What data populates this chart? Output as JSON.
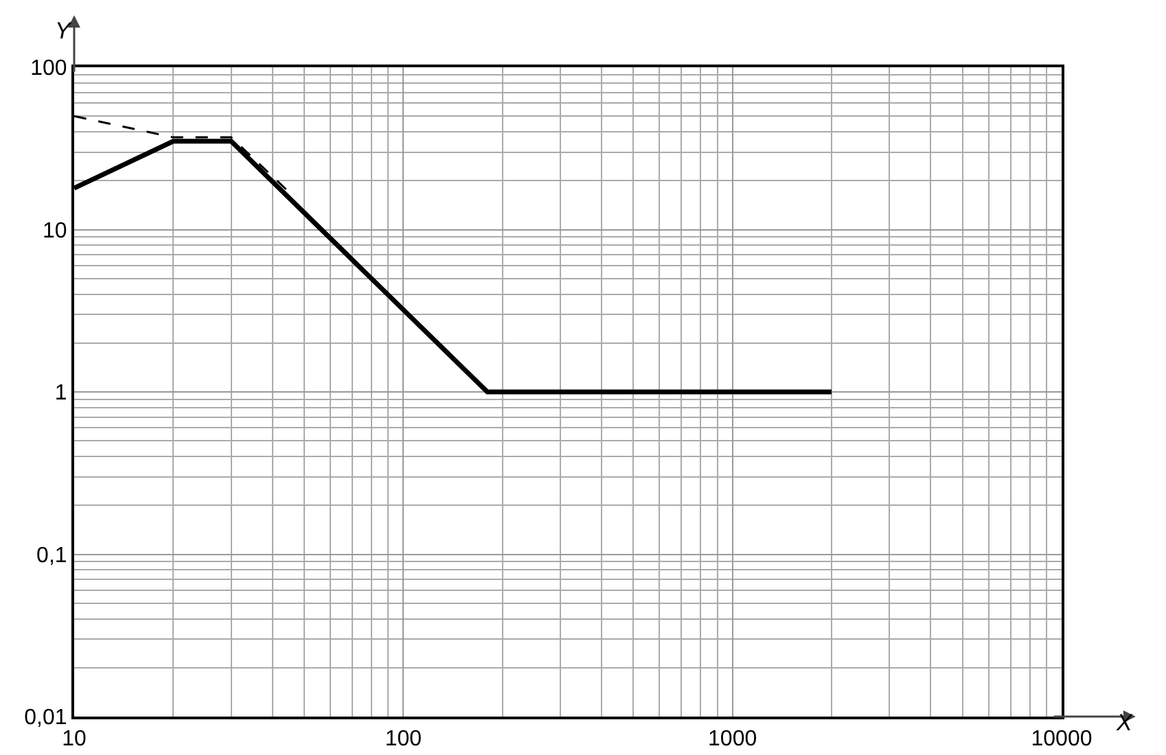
{
  "chart_data": {
    "type": "line",
    "xlabel": "X",
    "ylabel": "Y",
    "log": "xy",
    "grid": true,
    "marker": "none",
    "xlim": [
      10,
      10000
    ],
    "xticks": [
      10,
      100,
      1000,
      10000
    ],
    "ylim": [
      0.01,
      100
    ],
    "yticks": [
      {
        "value": 0.01,
        "label": "0,01"
      },
      {
        "value": 0.1,
        "label": "0,1"
      },
      1,
      10,
      100
    ],
    "series": [
      {
        "color": "#000000",
        "line_style": "dashed",
        "x": [
          10,
          20,
          30,
          45
        ],
        "values": [
          50,
          37,
          37,
          17
        ]
      },
      {
        "color": "#000000",
        "line_style": "solid",
        "x": [
          10,
          20,
          30,
          180,
          2000
        ],
        "values": [
          18,
          35,
          35,
          1,
          1
        ]
      }
    ]
  }
}
